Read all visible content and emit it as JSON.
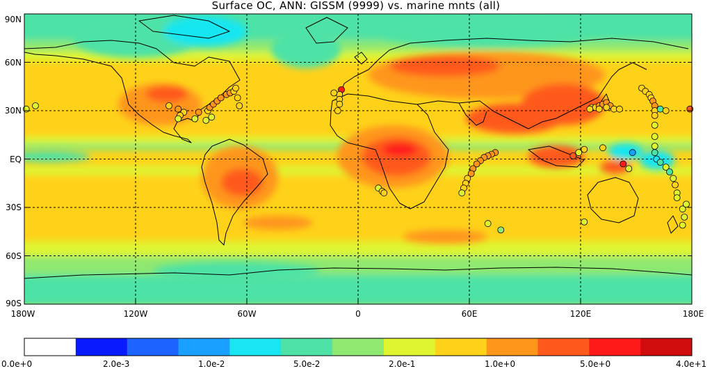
{
  "title": "Surface OC, ANN: GISSM (9999) vs. marine mnts (all)",
  "map": {
    "lat_labels": [
      "90N",
      "60N",
      "30N",
      "EQ",
      "30S",
      "60S",
      "90S"
    ],
    "lon_labels": [
      "180W",
      "120W",
      "60W",
      "0",
      "60E",
      "120E",
      "180E"
    ],
    "grid": "dashed, every 30 degrees"
  },
  "colorbar": {
    "colors": [
      "#ffffff",
      "#0a1aff",
      "#1c63ff",
      "#1aa1ff",
      "#19e6f0",
      "#4ee2a6",
      "#8fe870",
      "#dff530",
      "#ffd21a",
      "#ff961c",
      "#ff5a1c",
      "#ff1a1a",
      "#d00c0c"
    ],
    "tick_labels": [
      "0.0e+0",
      "2.0e-3",
      "1.0e-2",
      "5.0e-2",
      "2.0e-1",
      "1.0e+0",
      "5.0e+0",
      "4.0e+1"
    ]
  },
  "observations": [
    {
      "lat": 31,
      "lon": -179,
      "cls": 7
    },
    {
      "lat": 33,
      "lon": -174,
      "cls": 7
    },
    {
      "lat": 31,
      "lon": -97,
      "cls": 9
    },
    {
      "lat": 29,
      "lon": -94,
      "cls": 8
    },
    {
      "lat": 27,
      "lon": -96,
      "cls": 8
    },
    {
      "lat": 25,
      "lon": -97,
      "cls": 7
    },
    {
      "lat": 29,
      "lon": -86,
      "cls": 9
    },
    {
      "lat": 25,
      "lon": -88,
      "cls": 7
    },
    {
      "lat": 24,
      "lon": -82,
      "cls": 7
    },
    {
      "lat": 26,
      "lon": -79,
      "cls": 7
    },
    {
      "lat": 30,
      "lon": -81,
      "cls": 8
    },
    {
      "lat": 32,
      "lon": -80,
      "cls": 9
    },
    {
      "lat": 34,
      "lon": -78,
      "cls": 9
    },
    {
      "lat": 36,
      "lon": -76,
      "cls": 9
    },
    {
      "lat": 38,
      "lon": -74,
      "cls": 9
    },
    {
      "lat": 40,
      "lon": -71,
      "cls": 9
    },
    {
      "lat": 41,
      "lon": -69,
      "cls": 9
    },
    {
      "lat": 42,
      "lon": -67,
      "cls": 8
    },
    {
      "lat": 44,
      "lon": -66,
      "cls": 8
    },
    {
      "lat": 38,
      "lon": -65,
      "cls": 8
    },
    {
      "lat": 33,
      "lon": -64,
      "cls": 8
    },
    {
      "lat": 33,
      "lon": -102,
      "cls": 8
    },
    {
      "lat": 43,
      "lon": -9,
      "cls": 11
    },
    {
      "lat": 40,
      "lon": -10,
      "cls": 8
    },
    {
      "lat": 37,
      "lon": -10,
      "cls": 8
    },
    {
      "lat": 34,
      "lon": -10,
      "cls": 8
    },
    {
      "lat": 30,
      "lon": -11,
      "cls": 8
    },
    {
      "lat": 41,
      "lon": -13,
      "cls": 8
    },
    {
      "lat": -18,
      "lon": 11,
      "cls": 7
    },
    {
      "lat": -20,
      "lon": 13,
      "cls": 8
    },
    {
      "lat": -21,
      "lon": 14,
      "cls": 8
    },
    {
      "lat": 4,
      "lon": 74,
      "cls": 9
    },
    {
      "lat": 3,
      "lon": 72,
      "cls": 9
    },
    {
      "lat": 2,
      "lon": 70,
      "cls": 9
    },
    {
      "lat": 1,
      "lon": 68,
      "cls": 9
    },
    {
      "lat": -1,
      "lon": 66,
      "cls": 9
    },
    {
      "lat": -3,
      "lon": 64,
      "cls": 9
    },
    {
      "lat": -6,
      "lon": 62,
      "cls": 9
    },
    {
      "lat": -9,
      "lon": 61,
      "cls": 9
    },
    {
      "lat": -12,
      "lon": 59,
      "cls": 8
    },
    {
      "lat": -15,
      "lon": 58,
      "cls": 8
    },
    {
      "lat": -18,
      "lon": 57,
      "cls": 8
    },
    {
      "lat": -21,
      "lon": 56,
      "cls": 7
    },
    {
      "lat": -44,
      "lon": 77,
      "cls": 6
    },
    {
      "lat": -40,
      "lon": 70,
      "cls": 7
    },
    {
      "lat": 2,
      "lon": 116,
      "cls": 10
    },
    {
      "lat": 4,
      "lon": 119,
      "cls": 7
    },
    {
      "lat": 6,
      "lon": 122,
      "cls": 8
    },
    {
      "lat": 7,
      "lon": 132,
      "cls": 8
    },
    {
      "lat": 4,
      "lon": 148,
      "cls": 3
    },
    {
      "lat": -3,
      "lon": 143,
      "cls": 11
    },
    {
      "lat": -6,
      "lon": 146,
      "cls": 7
    },
    {
      "lat": 32,
      "lon": 126,
      "cls": 8
    },
    {
      "lat": 32,
      "lon": 128,
      "cls": 8
    },
    {
      "lat": 33,
      "lon": 130,
      "cls": 9
    },
    {
      "lat": 34,
      "lon": 132,
      "cls": 9
    },
    {
      "lat": 35,
      "lon": 134,
      "cls": 9
    },
    {
      "lat": 33,
      "lon": 136,
      "cls": 9
    },
    {
      "lat": 31,
      "lon": 138,
      "cls": 8
    },
    {
      "lat": 31,
      "lon": 141,
      "cls": 8
    },
    {
      "lat": 32,
      "lon": 134,
      "cls": 8
    },
    {
      "lat": 31,
      "lon": 130,
      "cls": 8
    },
    {
      "lat": 31,
      "lon": 125,
      "cls": 8
    },
    {
      "lat": 44,
      "lon": 153,
      "cls": 8
    },
    {
      "lat": 42,
      "lon": 155,
      "cls": 8
    },
    {
      "lat": 40,
      "lon": 157,
      "cls": 8
    },
    {
      "lat": 38,
      "lon": 158,
      "cls": 8
    },
    {
      "lat": 36,
      "lon": 159,
      "cls": 9
    },
    {
      "lat": 33,
      "lon": 160,
      "cls": 9
    },
    {
      "lat": 30,
      "lon": 160,
      "cls": 8
    },
    {
      "lat": 27,
      "lon": 160,
      "cls": 8
    },
    {
      "lat": 31,
      "lon": 163,
      "cls": 5
    },
    {
      "lat": 30,
      "lon": 166,
      "cls": 8
    },
    {
      "lat": 31,
      "lon": 179,
      "cls": 10
    },
    {
      "lat": 21,
      "lon": 160,
      "cls": 7
    },
    {
      "lat": 14,
      "lon": 160,
      "cls": 7
    },
    {
      "lat": 8,
      "lon": 160,
      "cls": 7
    },
    {
      "lat": 4,
      "lon": 160,
      "cls": 5
    },
    {
      "lat": 0,
      "lon": 161,
      "cls": 4
    },
    {
      "lat": -2,
      "lon": 163,
      "cls": 5
    },
    {
      "lat": -5,
      "lon": 166,
      "cls": 7
    },
    {
      "lat": -8,
      "lon": 168,
      "cls": 5
    },
    {
      "lat": -12,
      "lon": 170,
      "cls": 7
    },
    {
      "lat": -16,
      "lon": 171,
      "cls": 8
    },
    {
      "lat": -21,
      "lon": 172,
      "cls": 7
    },
    {
      "lat": -24,
      "lon": 172,
      "cls": 7
    },
    {
      "lat": -31,
      "lon": 175,
      "cls": 7
    },
    {
      "lat": -36,
      "lon": 176,
      "cls": 7
    },
    {
      "lat": -41,
      "lon": 175,
      "cls": 7
    },
    {
      "lat": -28,
      "lon": 177,
      "cls": 7
    },
    {
      "lat": -39,
      "lon": 122,
      "cls": 7
    }
  ]
}
